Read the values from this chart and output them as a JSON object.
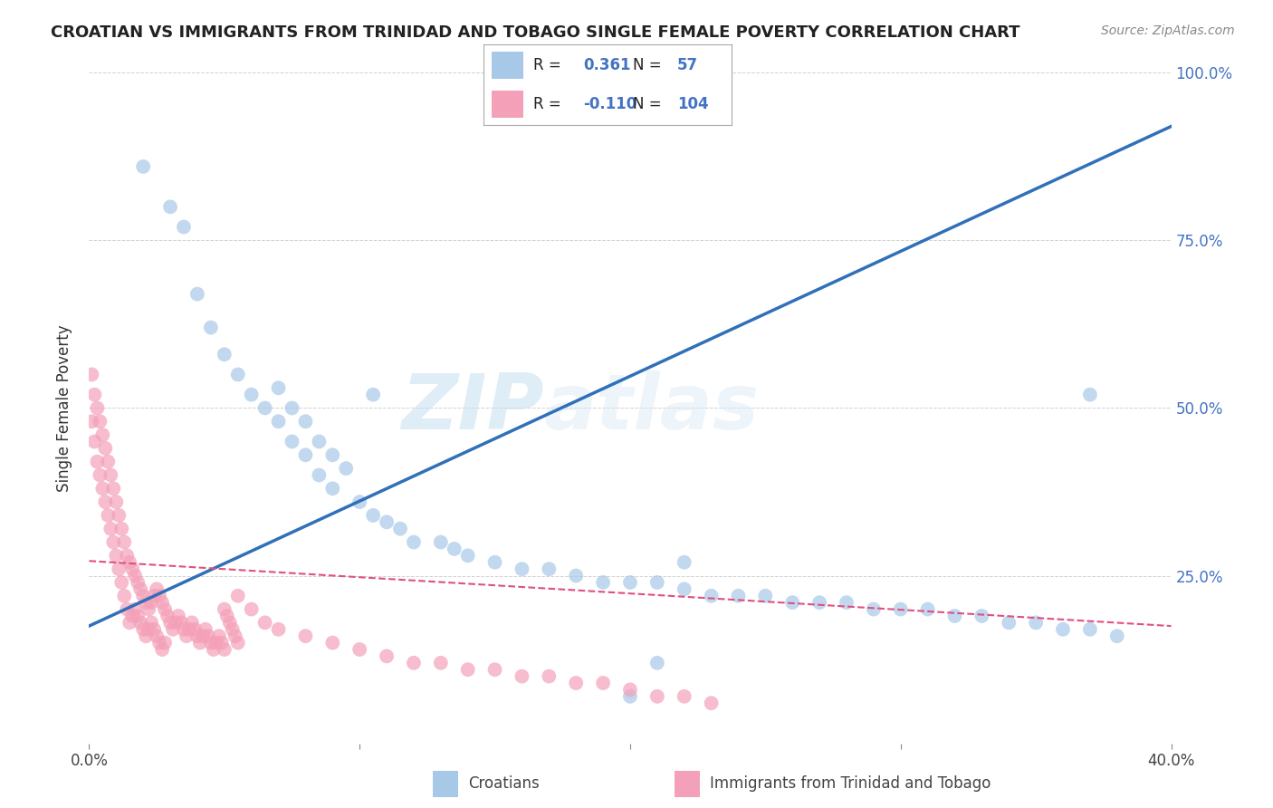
{
  "title": "CROATIAN VS IMMIGRANTS FROM TRINIDAD AND TOBAGO SINGLE FEMALE POVERTY CORRELATION CHART",
  "source": "Source: ZipAtlas.com",
  "xlabel_croatian": "Croatians",
  "xlabel_tt": "Immigrants from Trinidad and Tobago",
  "ylabel": "Single Female Poverty",
  "xlim": [
    0.0,
    0.4
  ],
  "ylim": [
    0.0,
    1.0
  ],
  "xticks": [
    0.0,
    0.1,
    0.2,
    0.3,
    0.4
  ],
  "xticklabels": [
    "0.0%",
    "",
    "",
    "",
    "40.0%"
  ],
  "yticks": [
    0.0,
    0.25,
    0.5,
    0.75,
    1.0
  ],
  "yticklabels_right": [
    "",
    "25.0%",
    "50.0%",
    "75.0%",
    "100.0%"
  ],
  "legend_R_croatian": "0.361",
  "legend_N_croatian": "57",
  "legend_R_tt": "-0.110",
  "legend_N_tt": "104",
  "color_blue": "#a8c8e8",
  "color_pink": "#f4a0b8",
  "color_blue_line": "#3070b8",
  "color_pink_line": "#e05080",
  "watermark_zip": "ZIP",
  "watermark_atlas": "atlas",
  "blue_trend_x": [
    0.0,
    0.4
  ],
  "blue_trend_y": [
    0.175,
    0.92
  ],
  "pink_trend_x": [
    0.0,
    0.4
  ],
  "pink_trend_y": [
    0.272,
    0.175
  ],
  "blue_scatter_x": [
    0.02,
    0.03,
    0.035,
    0.04,
    0.045,
    0.05,
    0.055,
    0.06,
    0.065,
    0.07,
    0.075,
    0.08,
    0.085,
    0.09,
    0.1,
    0.105,
    0.11,
    0.115,
    0.12,
    0.13,
    0.135,
    0.14,
    0.15,
    0.16,
    0.17,
    0.18,
    0.19,
    0.2,
    0.21,
    0.22,
    0.23,
    0.24,
    0.25,
    0.26,
    0.27,
    0.28,
    0.29,
    0.3,
    0.31,
    0.32,
    0.33,
    0.34,
    0.35,
    0.36,
    0.37,
    0.38,
    0.07,
    0.075,
    0.08,
    0.085,
    0.09,
    0.095,
    0.105,
    0.22,
    0.37,
    0.2,
    0.21
  ],
  "blue_scatter_y": [
    0.86,
    0.8,
    0.77,
    0.67,
    0.62,
    0.58,
    0.55,
    0.52,
    0.5,
    0.48,
    0.45,
    0.43,
    0.4,
    0.38,
    0.36,
    0.34,
    0.33,
    0.32,
    0.3,
    0.3,
    0.29,
    0.28,
    0.27,
    0.26,
    0.26,
    0.25,
    0.24,
    0.24,
    0.24,
    0.23,
    0.22,
    0.22,
    0.22,
    0.21,
    0.21,
    0.21,
    0.2,
    0.2,
    0.2,
    0.19,
    0.19,
    0.18,
    0.18,
    0.17,
    0.17,
    0.16,
    0.53,
    0.5,
    0.48,
    0.45,
    0.43,
    0.41,
    0.52,
    0.27,
    0.52,
    0.07,
    0.12
  ],
  "pink_scatter_x": [
    0.001,
    0.002,
    0.003,
    0.004,
    0.005,
    0.006,
    0.007,
    0.008,
    0.009,
    0.01,
    0.011,
    0.012,
    0.013,
    0.014,
    0.015,
    0.016,
    0.017,
    0.018,
    0.019,
    0.02,
    0.021,
    0.022,
    0.023,
    0.024,
    0.025,
    0.026,
    0.027,
    0.028,
    0.029,
    0.03,
    0.031,
    0.032,
    0.033,
    0.034,
    0.035,
    0.036,
    0.037,
    0.038,
    0.039,
    0.04,
    0.041,
    0.042,
    0.043,
    0.044,
    0.045,
    0.046,
    0.047,
    0.048,
    0.049,
    0.05,
    0.001,
    0.002,
    0.003,
    0.004,
    0.005,
    0.006,
    0.007,
    0.008,
    0.009,
    0.01,
    0.011,
    0.012,
    0.013,
    0.014,
    0.015,
    0.016,
    0.017,
    0.018,
    0.019,
    0.02,
    0.021,
    0.022,
    0.023,
    0.024,
    0.025,
    0.026,
    0.027,
    0.028,
    0.055,
    0.06,
    0.065,
    0.07,
    0.08,
    0.09,
    0.1,
    0.11,
    0.12,
    0.13,
    0.14,
    0.15,
    0.16,
    0.17,
    0.18,
    0.19,
    0.2,
    0.21,
    0.22,
    0.23,
    0.05,
    0.051,
    0.052,
    0.053,
    0.054,
    0.055
  ],
  "pink_scatter_y": [
    0.55,
    0.52,
    0.5,
    0.48,
    0.46,
    0.44,
    0.42,
    0.4,
    0.38,
    0.36,
    0.34,
    0.32,
    0.3,
    0.28,
    0.27,
    0.26,
    0.25,
    0.24,
    0.23,
    0.22,
    0.21,
    0.2,
    0.21,
    0.22,
    0.23,
    0.22,
    0.21,
    0.2,
    0.19,
    0.18,
    0.17,
    0.18,
    0.19,
    0.18,
    0.17,
    0.16,
    0.17,
    0.18,
    0.17,
    0.16,
    0.15,
    0.16,
    0.17,
    0.16,
    0.15,
    0.14,
    0.15,
    0.16,
    0.15,
    0.14,
    0.48,
    0.45,
    0.42,
    0.4,
    0.38,
    0.36,
    0.34,
    0.32,
    0.3,
    0.28,
    0.26,
    0.24,
    0.22,
    0.2,
    0.18,
    0.19,
    0.2,
    0.19,
    0.18,
    0.17,
    0.16,
    0.17,
    0.18,
    0.17,
    0.16,
    0.15,
    0.14,
    0.15,
    0.22,
    0.2,
    0.18,
    0.17,
    0.16,
    0.15,
    0.14,
    0.13,
    0.12,
    0.12,
    0.11,
    0.11,
    0.1,
    0.1,
    0.09,
    0.09,
    0.08,
    0.07,
    0.07,
    0.06,
    0.2,
    0.19,
    0.18,
    0.17,
    0.16,
    0.15
  ]
}
